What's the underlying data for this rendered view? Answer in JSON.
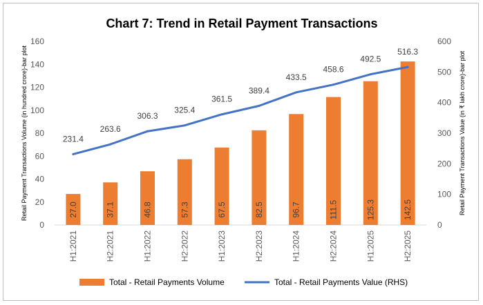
{
  "chart_data": {
    "type": "bar",
    "title": "Chart 7: Trend in Retail Payment Transactions",
    "categories": [
      "H1:2021",
      "H2:2021",
      "H1:2022",
      "H2:2022",
      "H1:2023",
      "H2:2023",
      "H1:2024",
      "H2:2024",
      "H1:2025",
      "H2:2025"
    ],
    "series": [
      {
        "name": "Total - Retail Payments Volume",
        "type": "bar",
        "axis": "left",
        "color": "#ED7D31",
        "values": [
          27.0,
          37.1,
          46.8,
          57.3,
          67.5,
          82.5,
          96.7,
          111.5,
          125.3,
          142.5
        ],
        "labels": [
          "27.0",
          "37.1",
          "46.8",
          "57.3",
          "67.5",
          "82.5",
          "96.7",
          "111.5",
          "125.3",
          "142.5"
        ]
      },
      {
        "name": "Total - Retail Payments  Value (RHS)",
        "type": "line",
        "axis": "right",
        "color": "#4472C4",
        "values": [
          231.4,
          263.6,
          306.3,
          325.4,
          361.5,
          389.4,
          433.5,
          458.6,
          492.5,
          516.3
        ],
        "labels": [
          "231.4",
          "263.6",
          "306.3",
          "325.4",
          "361.5",
          "389.4",
          "433.5",
          "458.6",
          "492.5",
          "516.3"
        ]
      }
    ],
    "ylabel": "Retail Payment Transactions Volume (in hundred crore)-bar plot",
    "y2label": "Retail Payment Transactions Value (in ₹ lakh crore)-bar plot",
    "ylim": [
      0,
      160
    ],
    "y2lim": [
      0,
      600
    ],
    "yticks": [
      "0",
      "20",
      "40",
      "60",
      "80",
      "100",
      "120",
      "140",
      "160"
    ],
    "y2ticks": [
      "0",
      "100",
      "200",
      "300",
      "400",
      "500",
      "600"
    ],
    "grid": false,
    "legend_position": "bottom"
  }
}
